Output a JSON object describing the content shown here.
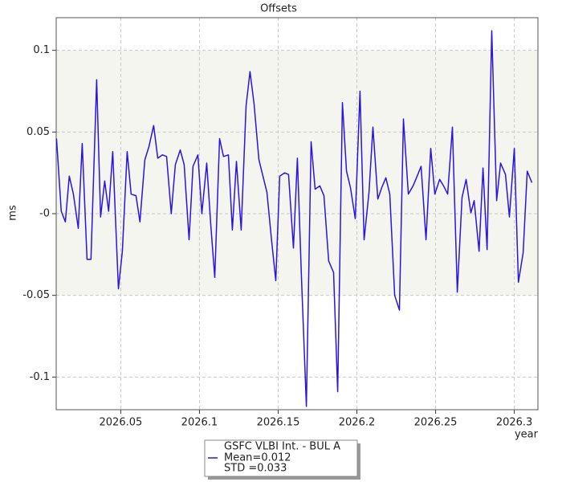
{
  "chart_data": {
    "type": "line",
    "title": "Offsets",
    "y_label": "ms",
    "x_label": "year",
    "xlim": [
      2026.009,
      2026.315
    ],
    "ylim": [
      -0.12,
      0.12
    ],
    "xticks": [
      2026.05,
      2026.1,
      2026.15,
      2026.2,
      2026.25,
      2026.3
    ],
    "yticks": [
      -0.1,
      -0.05,
      {
        "value": 0,
        "label": "-0"
      },
      0.05,
      0.1
    ],
    "grid": true,
    "shaded_band": [
      -0.05,
      0.1
    ],
    "band_color": "#f5f5f0",
    "legend_lines": [
      "Mean=0.012",
      "STD =0.033"
    ],
    "x": [
      2026.0092,
      2026.0122,
      2026.0148,
      2026.0173,
      2026.0199,
      2026.023,
      2026.0255,
      2026.0286,
      2026.0311,
      2026.0347,
      2026.0372,
      2026.0398,
      2026.0423,
      2026.0449,
      2026.0485,
      2026.051,
      2026.0541,
      2026.0566,
      2026.0597,
      2026.0622,
      2026.0653,
      2026.0679,
      2026.0709,
      2026.0735,
      2026.0765,
      2026.0791,
      2026.0821,
      2026.0847,
      2026.0878,
      2026.0903,
      2026.0934,
      2026.0959,
      2026.099,
      2026.1015,
      2026.1046,
      2026.1071,
      2026.1097,
      2026.1128,
      2026.1153,
      2026.1184,
      2026.1209,
      2026.1235,
      2026.1265,
      2026.1296,
      2026.1321,
      2026.1347,
      2026.1378,
      2026.1403,
      2026.1429,
      2026.1459,
      2026.1485,
      2026.151,
      2026.1541,
      2026.1566,
      2026.1597,
      2026.1622,
      2026.1648,
      2026.1679,
      2026.1709,
      2026.1735,
      2026.1765,
      2026.1791,
      2026.1821,
      2026.1852,
      2026.1878,
      2026.1908,
      2026.1934,
      2026.1959,
      2026.199,
      2026.202,
      2026.2046,
      2026.2077,
      2026.2102,
      2026.2133,
      2026.2158,
      2026.2184,
      2026.2209,
      2026.224,
      2026.227,
      2026.2296,
      2026.2327,
      2026.2357,
      2026.2383,
      2026.2408,
      2026.2439,
      2026.2469,
      2026.2495,
      2026.2526,
      2026.2551,
      2026.2577,
      2026.2607,
      2026.2638,
      2026.2668,
      2026.2694,
      2026.2724,
      2026.2745,
      2026.2776,
      2026.2801,
      2026.2827,
      2026.2857,
      2026.2888,
      2026.2913,
      2026.2944,
      2026.2969,
      2026.3,
      2026.3026,
      2026.3056,
      2026.3082,
      2026.3112
    ],
    "series": [
      {
        "name": "GSFC VLBI Int. - BUL A",
        "color": "#2a14e0",
        "values": [
          0.046,
          0.0015,
          -0.005,
          0.023,
          0.012,
          -0.009,
          0.043,
          -0.028,
          -0.028,
          0.082,
          -0.002,
          0.02,
          0.0015,
          0.038,
          -0.046,
          -0.023,
          0.038,
          0.012,
          0.011,
          -0.005,
          0.033,
          0.041,
          0.054,
          0.034,
          0.036,
          0.035,
          0,
          0.03,
          0.039,
          0.03,
          -0.016,
          0.029,
          0.036,
          0,
          0.031,
          -0.006,
          -0.039,
          0.046,
          0.035,
          0.036,
          -0.01,
          0.032,
          -0.01,
          0.066,
          0.087,
          0.067,
          0.033,
          0.023,
          0.013,
          -0.017,
          -0.041,
          0.023,
          0.025,
          0.024,
          -0.021,
          0.034,
          -0.039,
          -0.118,
          0.044,
          0.015,
          0.017,
          0.011,
          -0.029,
          -0.036,
          -0.109,
          0.068,
          0.026,
          0.016,
          -0.003,
          0.075,
          -0.016,
          0.013,
          0.053,
          0.009,
          0.016,
          0.022,
          0.012,
          -0.05,
          -0.059,
          0.058,
          0.012,
          0.017,
          0.023,
          0.029,
          -0.016,
          0.04,
          0.012,
          0.021,
          0.017,
          0.012,
          0.053,
          -0.048,
          0.01,
          0.021,
          0.0005,
          0.008,
          -0.023,
          0.028,
          -0.022,
          0.112,
          0.008,
          0.031,
          0.024,
          -0.002,
          0.04,
          -0.042,
          -0.024,
          0.026,
          0.019
        ]
      }
    ]
  }
}
